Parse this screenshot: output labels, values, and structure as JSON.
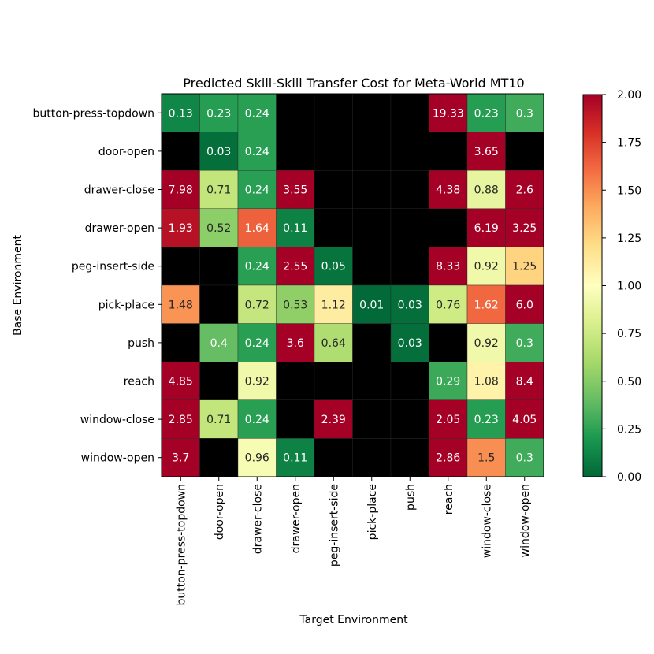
{
  "chart_data": {
    "type": "heatmap",
    "title": "Predicted Skill-Skill Transfer Cost for Meta-World MT10",
    "xlabel": "Target Environment",
    "ylabel": "Base Environment",
    "x_categories": [
      "button-press-topdown",
      "door-open",
      "drawer-close",
      "drawer-open",
      "peg-insert-side",
      "pick-place",
      "push",
      "reach",
      "window-close",
      "window-open"
    ],
    "y_categories": [
      "button-press-topdown",
      "door-open",
      "drawer-close",
      "drawer-open",
      "peg-insert-side",
      "pick-place",
      "push",
      "reach",
      "window-close",
      "window-open"
    ],
    "cells": [
      [
        "0.13",
        "0.23",
        "0.24",
        null,
        null,
        null,
        null,
        "19.33",
        "0.23",
        "0.3"
      ],
      [
        null,
        "0.03",
        "0.24",
        null,
        null,
        null,
        null,
        null,
        "3.65",
        null
      ],
      [
        "7.98",
        "0.71",
        "0.24",
        "3.55",
        null,
        null,
        null,
        "4.38",
        "0.88",
        "2.6"
      ],
      [
        "1.93",
        "0.52",
        "1.64",
        "0.11",
        null,
        null,
        null,
        null,
        "6.19",
        "3.25"
      ],
      [
        null,
        null,
        "0.24",
        "2.55",
        "0.05",
        null,
        null,
        "8.33",
        "0.92",
        "1.25"
      ],
      [
        "1.48",
        null,
        "0.72",
        "0.53",
        "1.12",
        "0.01",
        "0.03",
        "0.76",
        "1.62",
        "6.0"
      ],
      [
        null,
        "0.4",
        "0.24",
        "3.6",
        "0.64",
        null,
        "0.03",
        null,
        "0.92",
        "0.3"
      ],
      [
        "4.85",
        null,
        "0.92",
        null,
        null,
        null,
        null,
        "0.29",
        "1.08",
        "8.4"
      ],
      [
        "2.85",
        "0.71",
        "0.24",
        null,
        "2.39",
        null,
        null,
        "2.05",
        "0.23",
        "4.05"
      ],
      [
        "3.7",
        null,
        "0.96",
        "0.11",
        null,
        null,
        null,
        "2.86",
        "1.5",
        "0.3"
      ]
    ],
    "missing_color": "#000000",
    "colormap": "RdYlGn_r",
    "vmin": 0,
    "vmax": 2,
    "colorbar_ticks": [
      "0.00",
      "0.25",
      "0.50",
      "0.75",
      "1.00",
      "1.25",
      "1.50",
      "1.75",
      "2.00"
    ]
  }
}
